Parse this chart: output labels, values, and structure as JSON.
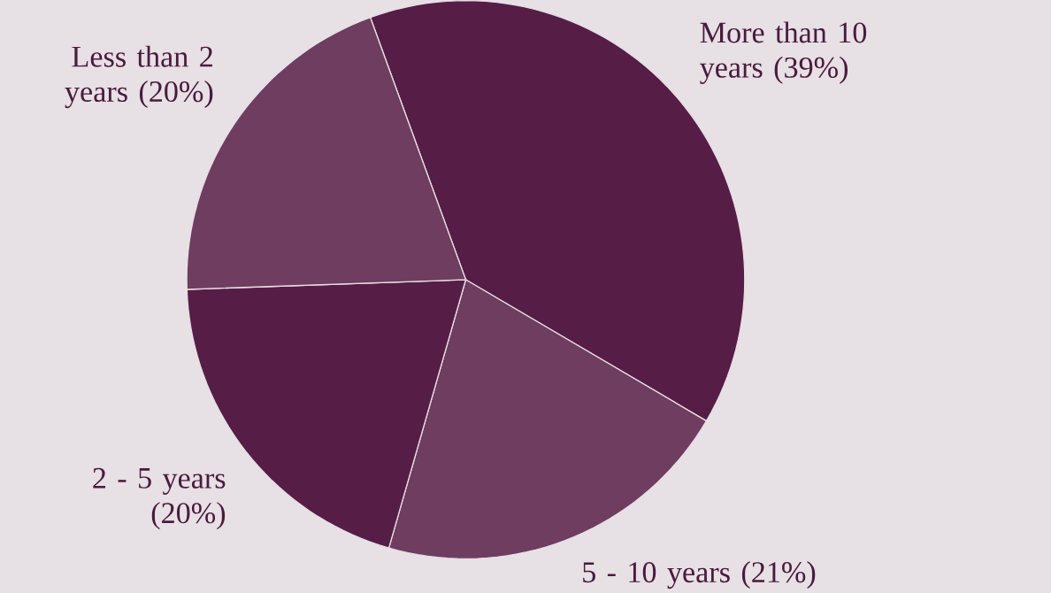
{
  "chart_data": {
    "type": "pie",
    "categories": [
      "More than 10 years",
      "5 - 10 years",
      "2 - 5 years",
      "Less than 2 years"
    ],
    "values": [
      39,
      21,
      20,
      20
    ],
    "value_labels": [
      "(39%)",
      "(21%)",
      "(20%)",
      "(20%)"
    ],
    "colors": [
      "#561d47",
      "#6e3d60",
      "#561d47",
      "#6e3d60"
    ]
  }
}
